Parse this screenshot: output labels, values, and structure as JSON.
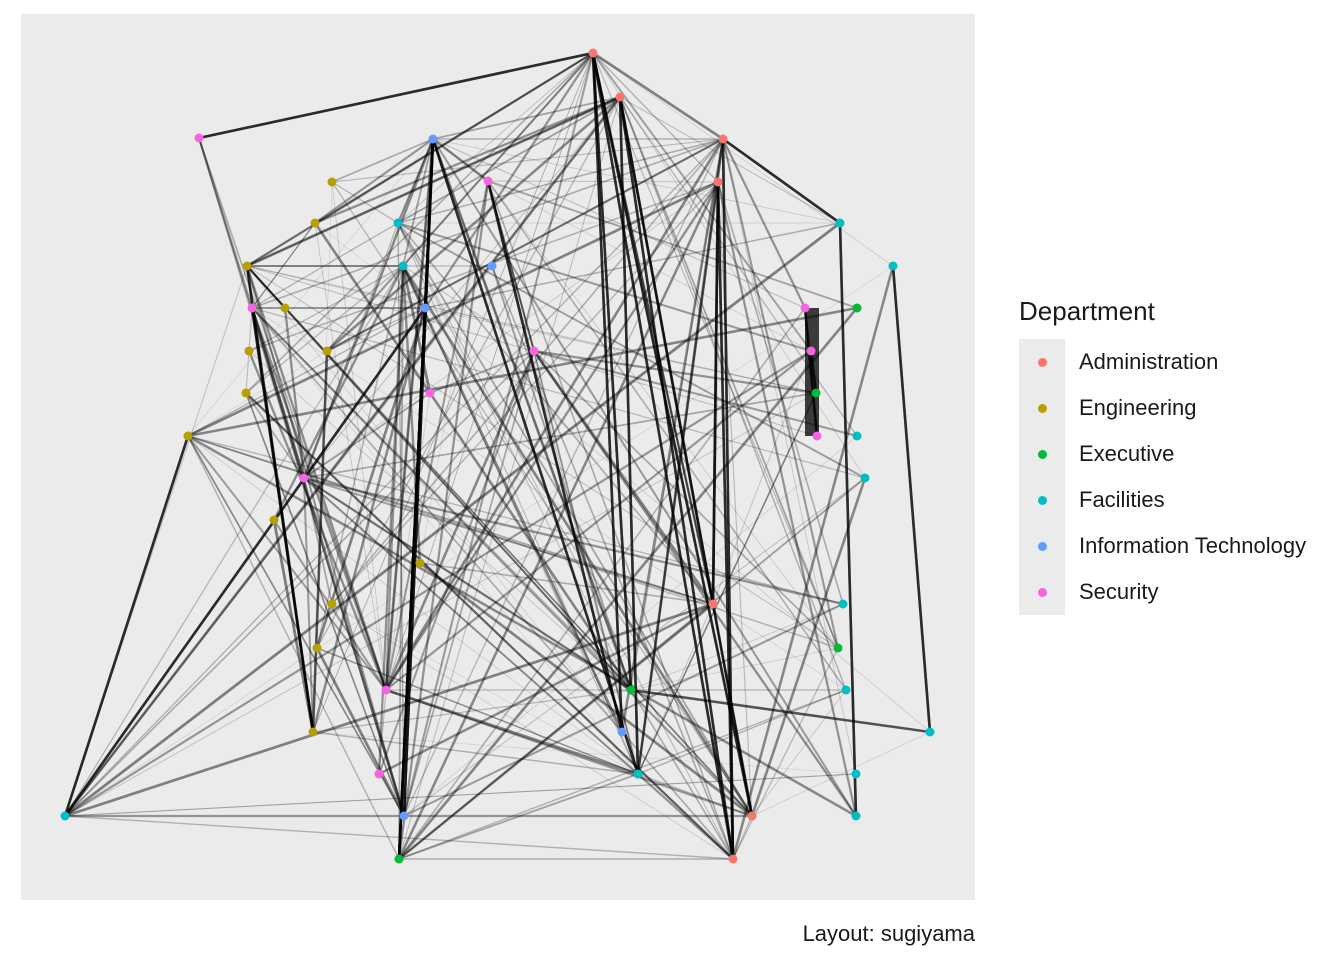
{
  "legend": {
    "title": "Department",
    "items": [
      {
        "label": "Administration",
        "color": "#F8766D"
      },
      {
        "label": "Engineering",
        "color": "#B79F00"
      },
      {
        "label": "Executive",
        "color": "#00BA38"
      },
      {
        "label": "Facilities",
        "color": "#00BFC4"
      },
      {
        "label": "Information Technology",
        "color": "#619CFF"
      },
      {
        "label": "Security",
        "color": "#F564E3"
      }
    ]
  },
  "caption": "Layout: sugiyama"
}
